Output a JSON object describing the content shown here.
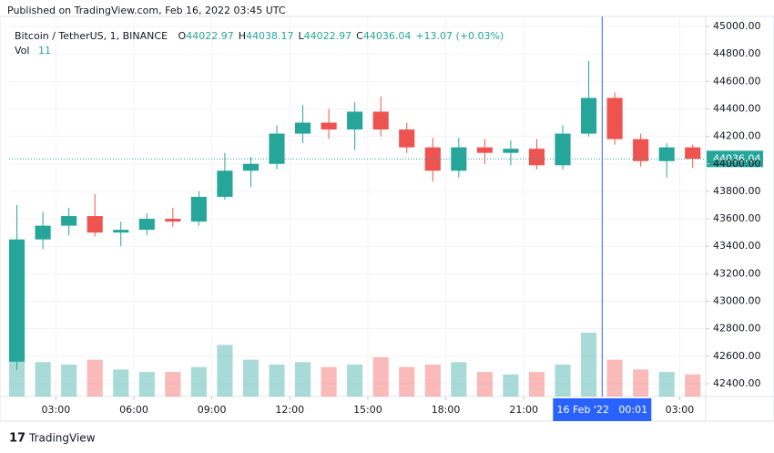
{
  "published": "Published on TradingView.com, Feb 16, 2022 03:45 UTC",
  "footer": "TradingView",
  "chart_data": {
    "type": "candlestick",
    "symbol": "Bitcoin / TetherUS, 1, BINANCE",
    "ohlc_legend": [
      {
        "label": "O",
        "value": 44022.97
      },
      {
        "label": "H",
        "value": 44038.17
      },
      {
        "label": "L",
        "value": 44022.97
      },
      {
        "label": "C",
        "value": 44036.04
      }
    ],
    "change": "+13.07 (+0.03%)",
    "volume_name": "Vol",
    "volume_legend": 11,
    "up_color": "#26a69a",
    "down_color": "#ef5350",
    "grid": true,
    "x": [
      1.5,
      2.5,
      3.5,
      4.5,
      5.5,
      6.5,
      7.5,
      8.5,
      9.5,
      10.5,
      11.5,
      12.5,
      13.5,
      14.5,
      15.5,
      16.5,
      17.5,
      18.5,
      19.5,
      20.5,
      21.5,
      22.5,
      23.5,
      24.5,
      25.5,
      26.5,
      27.5
    ],
    "open": [
      42560,
      43450,
      43550,
      43620,
      43500,
      43520,
      43600,
      43580,
      43760,
      43950,
      44000,
      44220,
      44300,
      44250,
      44380,
      44250,
      44120,
      43950,
      44120,
      44080,
      44110,
      43990,
      44220,
      44480,
      44180,
      44020,
      44120
    ],
    "high": [
      43700,
      43650,
      43680,
      43780,
      43580,
      43640,
      43680,
      43800,
      44080,
      44050,
      44280,
      44430,
      44400,
      44450,
      44490,
      44300,
      44190,
      44190,
      44180,
      44170,
      44180,
      44280,
      44750,
      44520,
      44220,
      44150,
      44140
    ],
    "low": [
      42500,
      43380,
      43480,
      43470,
      43400,
      43480,
      43540,
      43550,
      43740,
      43830,
      43960,
      44150,
      44180,
      44100,
      44200,
      44080,
      43870,
      43900,
      44000,
      43990,
      43960,
      43960,
      44200,
      44140,
      43980,
      43900,
      43970
    ],
    "close": [
      43450,
      43550,
      43620,
      43500,
      43520,
      43600,
      43580,
      43760,
      43950,
      44000,
      44220,
      44300,
      44250,
      44380,
      44250,
      44120,
      43950,
      44120,
      44080,
      44110,
      43990,
      44220,
      44480,
      44180,
      44020,
      44120,
      44036.04
    ],
    "volume": [
      1900,
      1400,
      1300,
      1500,
      1100,
      1000,
      1000,
      1200,
      2100,
      1500,
      1300,
      1400,
      1200,
      1300,
      1600,
      1200,
      1300,
      1400,
      1000,
      900,
      1000,
      1300,
      2600,
      1500,
      1100,
      1000,
      900
    ],
    "xlim": [
      1.2,
      28
    ],
    "xticks": [
      {
        "value": 3,
        "label": "03:00"
      },
      {
        "value": 6,
        "label": "06:00"
      },
      {
        "value": 9,
        "label": "09:00"
      },
      {
        "value": 12,
        "label": "12:00"
      },
      {
        "value": 15,
        "label": "15:00"
      },
      {
        "value": 18,
        "label": "18:00"
      },
      {
        "value": 21,
        "label": "21:00"
      },
      {
        "value": 27,
        "label": "03:00"
      }
    ],
    "crosshair": {
      "value": 24.0167,
      "label": "16 Feb '22   00:01"
    },
    "ylim": [
      42307,
      45073
    ],
    "yticks": [
      {
        "value": 42400,
        "label": "42400.00"
      },
      {
        "value": 42600,
        "label": "42600.00"
      },
      {
        "value": 42800,
        "label": "42800.00"
      },
      {
        "value": 43000,
        "label": "43000.00"
      },
      {
        "value": 43200,
        "label": "43200.00"
      },
      {
        "value": 43400,
        "label": "43400.00"
      },
      {
        "value": 43600,
        "label": "43600.00"
      },
      {
        "value": 43800,
        "label": "43800.00"
      },
      {
        "value": 44000,
        "label": "44000.00"
      },
      {
        "value": 44200,
        "label": "44200.00"
      },
      {
        "value": 44400,
        "label": "44400.00"
      },
      {
        "value": 44600,
        "label": "44600.00"
      },
      {
        "value": 44800,
        "label": "44800.00"
      },
      {
        "value": 45000,
        "label": "45000.00"
      }
    ],
    "last_price": 44036.04
  }
}
